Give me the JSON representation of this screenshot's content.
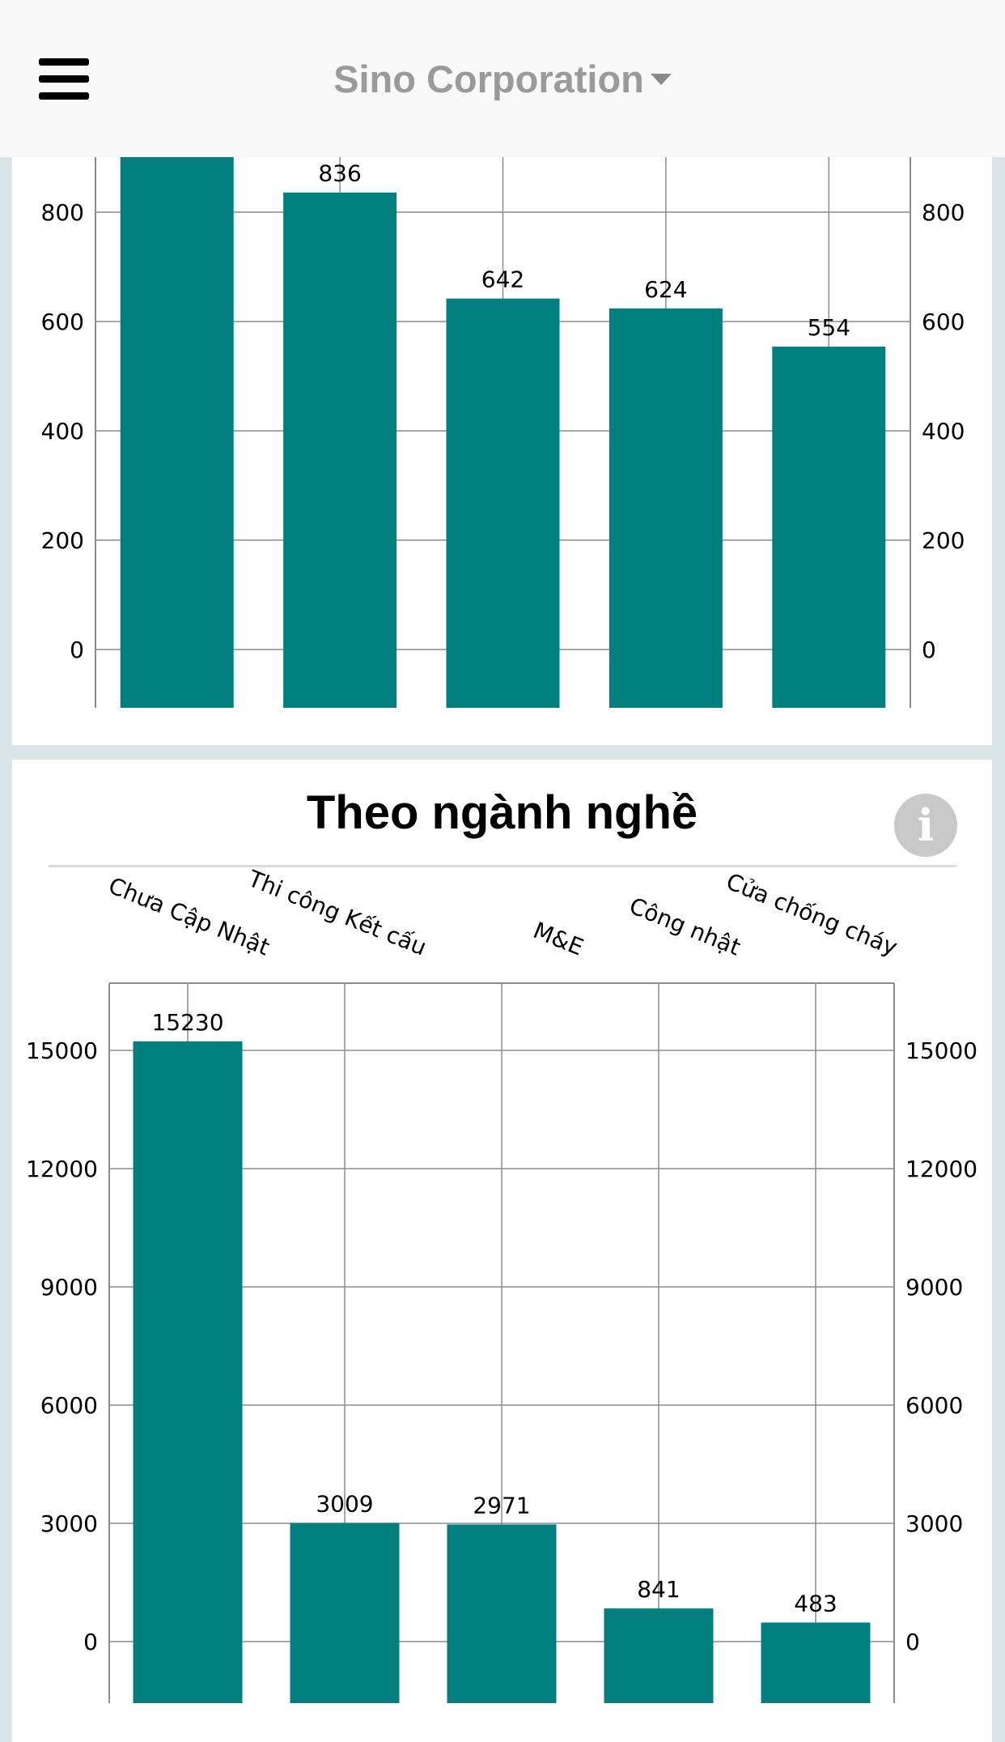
{
  "header": {
    "company_name": "Sino Corporation",
    "menu_icon": "hamburger-menu-icon",
    "dropdown_icon": "caret-down-icon"
  },
  "chart_data": [
    {
      "type": "bar",
      "title": "",
      "values": [
        null,
        836,
        642,
        624,
        554
      ],
      "ylim": [
        0,
        800
      ],
      "yticks": [
        0,
        200,
        400,
        600,
        800
      ],
      "grid": true,
      "color": "#017f7e"
    },
    {
      "type": "bar",
      "title": "Theo ngành nghề",
      "categories": [
        "Chưa Cập Nhật",
        "Thi công Kết cấu",
        "M&E",
        "Công nhật",
        "Cửa chống cháy"
      ],
      "values": [
        15230,
        3009,
        2971,
        841,
        483
      ],
      "ylim": [
        0,
        15000
      ],
      "yticks": [
        0,
        3000,
        6000,
        9000,
        12000,
        15000
      ],
      "grid": true,
      "color": "#017f7e"
    }
  ],
  "info_button": {
    "label": "i",
    "icon": "info-icon"
  }
}
